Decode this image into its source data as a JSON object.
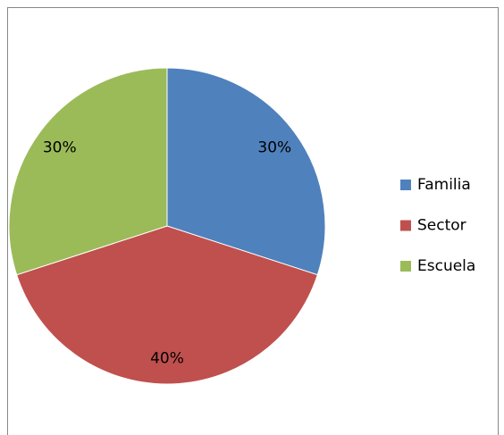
{
  "chart_data": {
    "type": "pie",
    "categories": [
      "Familia",
      "Sector",
      "Escuela"
    ],
    "values": [
      30,
      40,
      30
    ],
    "value_labels": [
      "30%",
      "40%",
      "30%"
    ],
    "colors": [
      "#4f81bd",
      "#c0504d",
      "#9bbb59"
    ],
    "legend": "right"
  }
}
